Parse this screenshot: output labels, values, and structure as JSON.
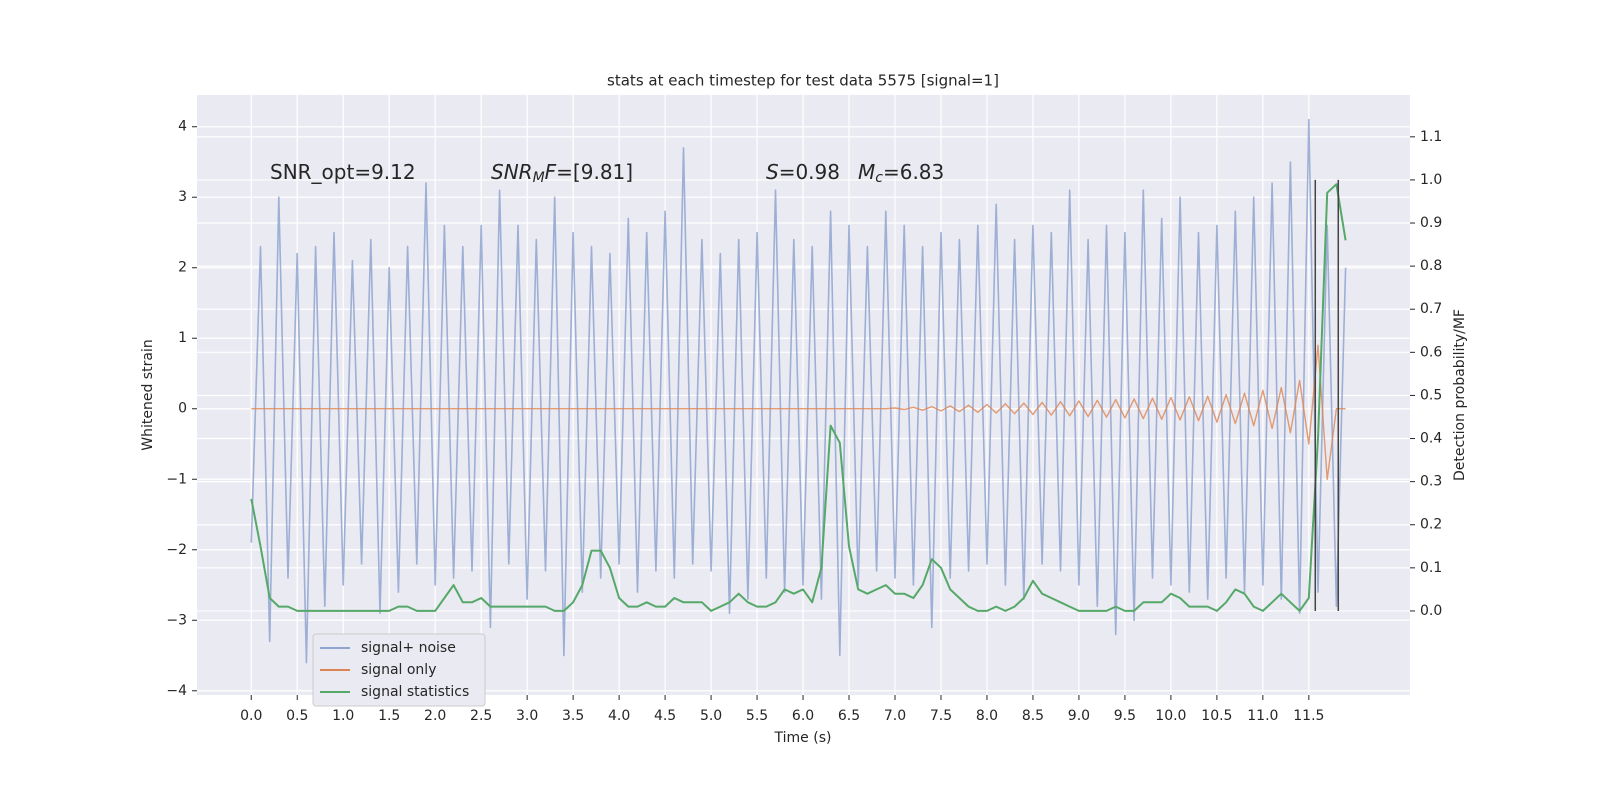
{
  "chart_data": {
    "type": "line",
    "title": "stats at each timestep for test data 5575 [signal=1]",
    "xlabel": "Time (s)",
    "ylabel": "Whitened strain",
    "y2label": "Detection probability/MF",
    "annotations": [
      [
        {
          "text": "SNR_opt=9.12"
        }
      ],
      [
        {
          "text": "SNR",
          "italic": true
        },
        {
          "text": "M",
          "italic": true,
          "sub": true
        },
        {
          "text": "F",
          "italic": true
        },
        {
          "text": "=[9.81]"
        }
      ],
      [
        {
          "text": "S",
          "italic": true
        },
        {
          "text": "=0.98"
        }
      ],
      [
        {
          "text": "M",
          "italic": true
        },
        {
          "text": "c",
          "italic": true,
          "sub": true
        },
        {
          "text": "=6.83"
        }
      ]
    ],
    "grid": true,
    "legend": "lower left",
    "xlim": [
      -0.59,
      12.6
    ],
    "ylim": [
      -4.06,
      4.45
    ],
    "y2lim": [
      -0.195,
      1.197
    ],
    "xticks": [
      {
        "value": 0,
        "label": "0.0"
      },
      0.5,
      {
        "value": 1,
        "label": "1.0"
      },
      1.5,
      {
        "value": 2,
        "label": "2.0"
      },
      2.5,
      {
        "value": 3,
        "label": "3.0"
      },
      3.5,
      {
        "value": 4,
        "label": "4.0"
      },
      4.5,
      {
        "value": 5,
        "label": "5.0"
      },
      5.5,
      {
        "value": 6,
        "label": "6.0"
      },
      6.5,
      {
        "value": 7,
        "label": "7.0"
      },
      7.5,
      {
        "value": 8,
        "label": "8.0"
      },
      8.5,
      {
        "value": 9,
        "label": "9.0"
      },
      9.5,
      {
        "value": 10,
        "label": "10.0"
      },
      10.5,
      {
        "value": 11,
        "label": "11.0"
      },
      11.5
    ],
    "yticks": [
      {
        "value": -4,
        "label": "−4"
      },
      {
        "value": -3,
        "label": "−3"
      },
      {
        "value": -2,
        "label": "−2"
      },
      {
        "value": -1,
        "label": "−1"
      },
      0,
      1,
      2,
      3,
      4
    ],
    "y2ticks": [
      {
        "value": 0,
        "label": "0.0"
      },
      0.1,
      0.2,
      0.3,
      0.4,
      0.5,
      0.6,
      0.7,
      0.8,
      0.9,
      {
        "value": 1,
        "label": "1.0"
      },
      1.1
    ],
    "vlines": {
      "x": [
        11.57,
        11.82
      ],
      "ymin": 0,
      "ymax": 1,
      "axis": "y2",
      "color": "#444444"
    },
    "x": [
      0.0,
      0.1,
      0.2,
      0.3,
      0.4,
      0.5,
      0.6,
      0.7,
      0.8,
      0.9,
      1.0,
      1.1,
      1.2,
      1.3,
      1.4,
      1.5,
      1.6,
      1.7,
      1.8,
      1.9,
      2.0,
      2.1,
      2.2,
      2.3,
      2.4,
      2.5,
      2.6,
      2.7,
      2.8,
      2.9,
      3.0,
      3.1,
      3.2,
      3.3,
      3.4,
      3.5,
      3.6,
      3.7,
      3.8,
      3.9,
      4.0,
      4.1,
      4.2,
      4.3,
      4.4,
      4.5,
      4.6,
      4.7,
      4.8,
      4.9,
      5.0,
      5.1,
      5.2,
      5.3,
      5.4,
      5.5,
      5.6,
      5.7,
      5.8,
      5.9,
      6.0,
      6.1,
      6.2,
      6.3,
      6.4,
      6.5,
      6.6,
      6.7,
      6.8,
      6.9,
      7.0,
      7.1,
      7.2,
      7.3,
      7.4,
      7.5,
      7.6,
      7.7,
      7.8,
      7.9,
      8.0,
      8.1,
      8.2,
      8.3,
      8.4,
      8.5,
      8.6,
      8.7,
      8.8,
      8.9,
      9.0,
      9.1,
      9.2,
      9.3,
      9.4,
      9.5,
      9.6,
      9.7,
      9.8,
      9.9,
      10.0,
      10.1,
      10.2,
      10.3,
      10.4,
      10.5,
      10.6,
      10.7,
      10.8,
      10.9,
      11.0,
      11.1,
      11.2,
      11.3,
      11.4,
      11.5,
      11.6,
      11.7,
      11.8,
      11.9
    ],
    "series": [
      {
        "name": "signal+ noise",
        "color": "#8fa5cf",
        "values": [
          -1.9,
          2.3,
          -3.3,
          3.0,
          -2.4,
          2.2,
          -3.6,
          2.3,
          -2.8,
          2.5,
          -2.5,
          2.1,
          -2.2,
          2.4,
          -2.9,
          2.0,
          -2.6,
          2.3,
          -2.2,
          3.2,
          -2.5,
          2.6,
          -2.4,
          2.3,
          -2.3,
          2.6,
          -3.1,
          3.1,
          -2.2,
          2.6,
          -2.7,
          2.4,
          -2.3,
          3.0,
          -3.5,
          2.5,
          -2.6,
          2.3,
          -2.4,
          2.2,
          -2.2,
          2.7,
          -2.6,
          2.5,
          -2.3,
          2.8,
          -2.4,
          3.7,
          -2.2,
          2.4,
          -2.3,
          2.2,
          -2.9,
          2.4,
          -2.7,
          2.5,
          -2.4,
          3.1,
          -2.6,
          2.4,
          -2.5,
          2.3,
          -2.7,
          2.8,
          -3.5,
          2.6,
          -2.5,
          2.3,
          -2.3,
          2.8,
          -2.4,
          2.6,
          -2.5,
          2.3,
          -3.1,
          2.5,
          -2.4,
          2.4,
          -2.3,
          2.6,
          -2.2,
          2.9,
          -2.5,
          2.4,
          -2.7,
          2.6,
          -2.2,
          2.5,
          -2.3,
          3.1,
          -2.5,
          2.4,
          -2.8,
          2.6,
          -3.2,
          2.5,
          -3.0,
          3.1,
          -2.4,
          2.7,
          -2.5,
          3.0,
          -2.6,
          2.5,
          -2.7,
          2.6,
          -2.4,
          2.8,
          -2.6,
          3.0,
          -2.5,
          3.2,
          -2.7,
          3.5,
          -2.9,
          4.1,
          -2.6,
          2.6,
          -2.8,
          2.0
        ]
      },
      {
        "name": "signal only",
        "color": "#dd8452",
        "values": [
          0,
          0,
          0,
          0,
          0,
          0,
          0,
          0,
          0,
          0,
          0,
          0,
          0,
          0,
          0,
          0,
          0,
          0,
          0,
          0,
          0,
          0,
          0,
          0,
          0,
          0,
          0,
          0,
          0,
          0,
          0,
          0,
          0,
          0,
          0,
          0,
          0,
          0,
          0,
          0,
          0,
          0,
          0,
          0,
          0,
          0,
          0,
          0,
          0,
          0,
          0,
          0,
          0,
          0,
          0,
          0,
          0,
          0,
          0,
          0,
          0,
          0,
          0,
          0,
          0,
          0,
          0,
          0,
          0,
          0,
          0.01,
          -0.01,
          0.02,
          -0.02,
          0.03,
          -0.03,
          0.04,
          -0.04,
          0.05,
          -0.05,
          0.06,
          -0.06,
          0.07,
          -0.07,
          0.08,
          -0.08,
          0.09,
          -0.09,
          0.1,
          -0.1,
          0.11,
          -0.11,
          0.12,
          -0.12,
          0.13,
          -0.13,
          0.14,
          -0.14,
          0.15,
          -0.15,
          0.16,
          -0.16,
          0.17,
          -0.17,
          0.18,
          -0.19,
          0.2,
          -0.21,
          0.22,
          -0.24,
          0.26,
          -0.28,
          0.3,
          -0.34,
          0.4,
          -0.5,
          0.9,
          -1.0,
          0,
          0
        ]
      },
      {
        "name": "signal statistics",
        "color": "#55a868",
        "axis": "y2",
        "values": [
          0.26,
          0.15,
          0.03,
          0.01,
          0.01,
          0.0,
          0.0,
          0.0,
          0.0,
          0.0,
          0.0,
          0.0,
          0.0,
          0.0,
          0.0,
          0.0,
          0.01,
          0.01,
          0.0,
          0.0,
          0.0,
          0.03,
          0.06,
          0.02,
          0.02,
          0.03,
          0.01,
          0.01,
          0.01,
          0.01,
          0.01,
          0.01,
          0.01,
          0.0,
          0.0,
          0.02,
          0.06,
          0.14,
          0.14,
          0.1,
          0.03,
          0.01,
          0.01,
          0.02,
          0.01,
          0.01,
          0.03,
          0.02,
          0.02,
          0.02,
          0.0,
          0.01,
          0.02,
          0.04,
          0.02,
          0.01,
          0.01,
          0.02,
          0.05,
          0.04,
          0.05,
          0.02,
          0.1,
          0.43,
          0.39,
          0.15,
          0.05,
          0.04,
          0.05,
          0.06,
          0.04,
          0.04,
          0.03,
          0.06,
          0.12,
          0.1,
          0.05,
          0.03,
          0.01,
          0.0,
          0.0,
          0.01,
          0.0,
          0.01,
          0.03,
          0.07,
          0.04,
          0.03,
          0.02,
          0.01,
          0.0,
          0.0,
          0.0,
          0.0,
          0.01,
          0.0,
          0.0,
          0.02,
          0.02,
          0.02,
          0.04,
          0.03,
          0.01,
          0.01,
          0.01,
          0.0,
          0.02,
          0.05,
          0.04,
          0.01,
          0.0,
          0.02,
          0.04,
          0.02,
          0.0,
          0.03,
          0.4,
          0.97,
          0.99,
          0.86
        ]
      }
    ]
  }
}
